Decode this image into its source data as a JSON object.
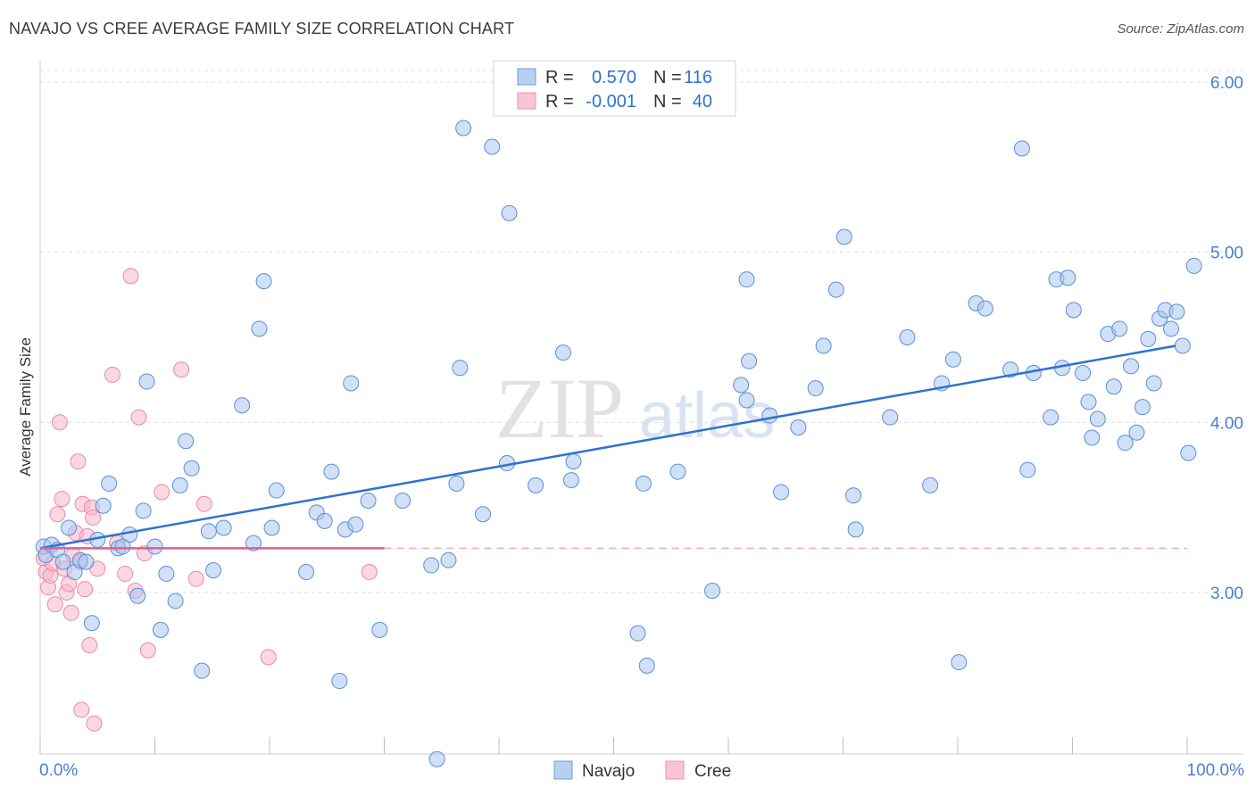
{
  "title": "NAVAJO VS CREE AVERAGE FAMILY SIZE CORRELATION CHART",
  "source": "Source: ZipAtlas.com",
  "watermark": {
    "zip": "ZIP",
    "atlas": "atlas"
  },
  "colors": {
    "navajo_fill": "#a9c6f0",
    "navajo_stroke": "#5b8fd6",
    "navajo_line": "#2f72d0",
    "cree_fill": "#f7b6cb",
    "cree_stroke": "#e88aa9",
    "cree_line": "#e35d8c",
    "tick_text": "#4a7fcf",
    "grid": "#dddddd"
  },
  "legend": {
    "r_label": "R =",
    "n_label": "N =",
    "rows": [
      {
        "series": "Navajo",
        "r_value": "0.570",
        "n_value": "116"
      },
      {
        "series": "Cree",
        "r_value": "-0.001",
        "n_value": "40"
      }
    ]
  },
  "bottom_legend": [
    "Navajo",
    "Cree"
  ],
  "chart_data": {
    "type": "scatter",
    "title": "NAVAJO VS CREE AVERAGE FAMILY SIZE CORRELATION CHART",
    "xlabel": "",
    "ylabel": "Average Family Size",
    "xlim": [
      0,
      100
    ],
    "ylim": [
      2.05,
      6.1
    ],
    "x_tick_labels": [
      "0.0%",
      "100.0%"
    ],
    "y_ticks": [
      3.0,
      4.0,
      5.0,
      6.0
    ],
    "y_tick_labels": [
      "3.00",
      "4.00",
      "5.00",
      "6.00"
    ],
    "grid": true,
    "legend_position": "top-center",
    "series": [
      {
        "name": "Navajo",
        "r": 0.57,
        "n": 116,
        "trend": {
          "x": [
            0,
            99
          ],
          "y": [
            3.26,
            4.45
          ]
        },
        "points": [
          [
            0.3,
            3.27
          ],
          [
            0.5,
            3.22
          ],
          [
            1,
            3.28
          ],
          [
            1.5,
            3.25
          ],
          [
            2,
            3.18
          ],
          [
            2.5,
            3.38
          ],
          [
            3,
            3.12
          ],
          [
            3.5,
            3.19
          ],
          [
            4,
            3.18
          ],
          [
            4.5,
            2.82
          ],
          [
            5,
            3.31
          ],
          [
            5.5,
            3.51
          ],
          [
            6,
            3.64
          ],
          [
            6.8,
            3.26
          ],
          [
            7.2,
            3.27
          ],
          [
            7.8,
            3.34
          ],
          [
            8.5,
            2.98
          ],
          [
            9,
            3.48
          ],
          [
            9.3,
            4.24
          ],
          [
            10,
            3.27
          ],
          [
            10.5,
            2.78
          ],
          [
            11,
            3.11
          ],
          [
            11.8,
            2.95
          ],
          [
            12.2,
            3.63
          ],
          [
            12.7,
            3.89
          ],
          [
            13.2,
            3.73
          ],
          [
            14.1,
            2.54
          ],
          [
            14.7,
            3.36
          ],
          [
            15.1,
            3.13
          ],
          [
            16,
            3.38
          ],
          [
            17.6,
            4.1
          ],
          [
            18.6,
            3.29
          ],
          [
            19.1,
            4.55
          ],
          [
            19.5,
            4.83
          ],
          [
            20.2,
            3.38
          ],
          [
            20.6,
            3.6
          ],
          [
            23.2,
            3.12
          ],
          [
            24.1,
            3.47
          ],
          [
            24.8,
            3.42
          ],
          [
            25.4,
            3.71
          ],
          [
            26.1,
            2.48
          ],
          [
            26.6,
            3.37
          ],
          [
            27.1,
            4.23
          ],
          [
            27.5,
            3.4
          ],
          [
            28.6,
            3.54
          ],
          [
            29.6,
            2.78
          ],
          [
            31.6,
            3.54
          ],
          [
            34.1,
            3.16
          ],
          [
            34.6,
            2.02
          ],
          [
            35.6,
            3.19
          ],
          [
            36.3,
            3.64
          ],
          [
            36.6,
            4.32
          ],
          [
            36.9,
            5.73
          ],
          [
            38.6,
            3.46
          ],
          [
            39.4,
            5.62
          ],
          [
            40.7,
            3.76
          ],
          [
            40.9,
            5.23
          ],
          [
            43.2,
            3.63
          ],
          [
            45.6,
            4.41
          ],
          [
            46.3,
            3.66
          ],
          [
            46.5,
            3.77
          ],
          [
            52.1,
            2.76
          ],
          [
            52.6,
            3.64
          ],
          [
            52.9,
            2.57
          ],
          [
            55.6,
            3.71
          ],
          [
            58.6,
            3.01
          ],
          [
            61.1,
            4.22
          ],
          [
            61.6,
            4.84
          ],
          [
            61.8,
            4.36
          ],
          [
            63.6,
            4.04
          ],
          [
            64.6,
            3.59
          ],
          [
            66.1,
            3.97
          ],
          [
            67.6,
            4.2
          ],
          [
            68.3,
            4.45
          ],
          [
            69.4,
            4.78
          ],
          [
            70.1,
            5.09
          ],
          [
            70.9,
            3.57
          ],
          [
            71.1,
            3.37
          ],
          [
            74.1,
            4.03
          ],
          [
            75.6,
            4.5
          ],
          [
            77.6,
            3.63
          ],
          [
            78.6,
            4.23
          ],
          [
            79.6,
            4.37
          ],
          [
            80.1,
            2.59
          ],
          [
            81.6,
            4.7
          ],
          [
            82.4,
            4.67
          ],
          [
            84.6,
            4.31
          ],
          [
            85.6,
            5.61
          ],
          [
            86.1,
            3.72
          ],
          [
            86.6,
            4.29
          ],
          [
            88.1,
            4.03
          ],
          [
            88.6,
            4.84
          ],
          [
            89.1,
            4.32
          ],
          [
            89.6,
            4.85
          ],
          [
            90.1,
            4.66
          ],
          [
            90.9,
            4.29
          ],
          [
            91.4,
            4.12
          ],
          [
            91.7,
            3.91
          ],
          [
            92.2,
            4.02
          ],
          [
            93.1,
            4.52
          ],
          [
            93.6,
            4.21
          ],
          [
            94.1,
            4.55
          ],
          [
            94.6,
            3.88
          ],
          [
            95.1,
            4.33
          ],
          [
            95.6,
            3.94
          ],
          [
            96.1,
            4.09
          ],
          [
            96.6,
            4.49
          ],
          [
            97.1,
            4.23
          ],
          [
            97.6,
            4.61
          ],
          [
            98.1,
            4.66
          ],
          [
            98.6,
            4.55
          ],
          [
            99.1,
            4.65
          ],
          [
            99.6,
            4.45
          ],
          [
            100.1,
            3.82
          ],
          [
            100.6,
            4.92
          ],
          [
            61.6,
            4.13
          ]
        ]
      },
      {
        "name": "Cree",
        "r": -0.001,
        "n": 40,
        "trend": {
          "x": [
            0,
            30
          ],
          "y": [
            3.26,
            3.26
          ]
        },
        "trend_dashed": {
          "x": [
            30,
            100
          ],
          "y": [
            3.26,
            3.26
          ]
        },
        "points": [
          [
            0.3,
            3.2
          ],
          [
            0.5,
            3.12
          ],
          [
            0.7,
            3.03
          ],
          [
            0.9,
            3.1
          ],
          [
            1.1,
            3.17
          ],
          [
            1.3,
            2.93
          ],
          [
            1.5,
            3.46
          ],
          [
            1.7,
            4.0
          ],
          [
            1.9,
            3.55
          ],
          [
            2.1,
            3.14
          ],
          [
            2.3,
            3.0
          ],
          [
            2.5,
            3.05
          ],
          [
            2.7,
            2.88
          ],
          [
            2.9,
            3.22
          ],
          [
            3.1,
            3.35
          ],
          [
            3.3,
            3.77
          ],
          [
            3.5,
            3.18
          ],
          [
            3.7,
            3.52
          ],
          [
            3.9,
            3.02
          ],
          [
            4.1,
            3.33
          ],
          [
            4.3,
            2.69
          ],
          [
            4.5,
            3.5
          ],
          [
            4.7,
            2.23
          ],
          [
            5,
            3.14
          ],
          [
            4.6,
            3.44
          ],
          [
            6.3,
            4.28
          ],
          [
            6.7,
            3.29
          ],
          [
            7.4,
            3.11
          ],
          [
            7.9,
            4.86
          ],
          [
            8.3,
            3.01
          ],
          [
            8.6,
            4.03
          ],
          [
            9.1,
            3.23
          ],
          [
            9.4,
            2.66
          ],
          [
            10.6,
            3.59
          ],
          [
            12.3,
            4.31
          ],
          [
            13.6,
            3.08
          ],
          [
            14.3,
            3.52
          ],
          [
            19.9,
            2.62
          ],
          [
            28.7,
            3.12
          ],
          [
            3.6,
            2.31
          ]
        ]
      }
    ]
  }
}
